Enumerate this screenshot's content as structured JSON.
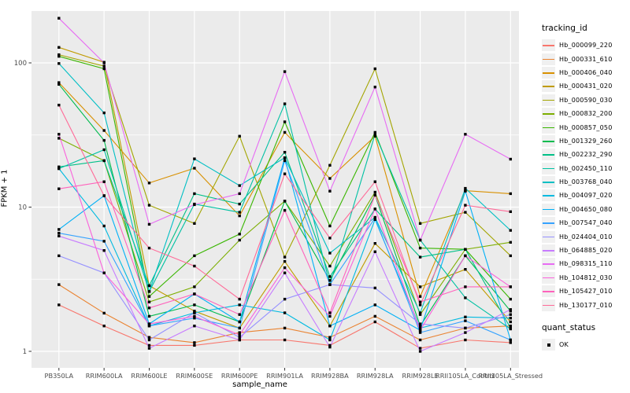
{
  "chart": {
    "xlabel": "sample_name",
    "ylabel": "FPKM + 1",
    "legend_title": "tracking_id",
    "quant_legend_title": "quant_status",
    "quant_ok_label": "OK"
  },
  "colors": {
    "panel_bg": "#EBEBEB",
    "grid": "#FFFFFF",
    "tick_text": "#4D4D4D",
    "point": "#000000"
  },
  "chart_data": {
    "type": "line",
    "title": "",
    "xlabel": "sample_name",
    "ylabel": "FPKM + 1",
    "y_scale": "log10",
    "y_ticks": [
      1,
      10,
      100
    ],
    "ylim": [
      0.77,
      230
    ],
    "grid": true,
    "legend_position": "right",
    "legend_title": "tracking_id",
    "point_marker": "black-square",
    "quant_status_values": [
      "OK"
    ],
    "categories": [
      "PB350LA",
      "RRIM600LA",
      "RRIM600LE",
      "RRIM600SE",
      "RRIM600PE",
      "RRIM901LA",
      "RRIM928BA",
      "RRIM928LA",
      "RRIM928LE",
      "RRII105LA_Control",
      "RRII105LA_Stressed"
    ],
    "series": [
      {
        "name": "Hb_000099_220",
        "color": "#F8766D",
        "values": [
          2.1,
          1.5,
          1.1,
          1.1,
          1.2,
          1.2,
          1.1,
          1.6,
          1.05,
          1.2,
          1.15
        ]
      },
      {
        "name": "Hb_000331_610",
        "color": "#EA8331",
        "values": [
          2.9,
          1.84,
          1.25,
          1.15,
          1.35,
          1.45,
          1.25,
          1.75,
          1.2,
          1.45,
          1.5
        ]
      },
      {
        "name": "Hb_000406_040",
        "color": "#D89000",
        "values": [
          73,
          34,
          14.7,
          18.6,
          8.7,
          33,
          15.8,
          31,
          2.4,
          13,
          12.4
        ]
      },
      {
        "name": "Hb_000431_020",
        "color": "#C09B00",
        "values": [
          128,
          101,
          2.85,
          1.9,
          1.45,
          4.2,
          1.5,
          5.6,
          2.8,
          3.7,
          1.6
        ]
      },
      {
        "name": "Hb_000590_030",
        "color": "#A3A500",
        "values": [
          114,
          95,
          10.3,
          7.7,
          31,
          4.5,
          19.5,
          91,
          7.7,
          9.2,
          4.6
        ]
      },
      {
        "name": "Hb_000832_200",
        "color": "#7CAE00",
        "values": [
          30,
          21,
          2.2,
          2.8,
          5.9,
          11,
          3.9,
          12.7,
          1.8,
          5.1,
          5.7
        ]
      },
      {
        "name": "Hb_000857_050",
        "color": "#39B600",
        "values": [
          111,
          91,
          2.4,
          4.6,
          6.5,
          39,
          7.4,
          33,
          5.2,
          5.1,
          2.3
        ]
      },
      {
        "name": "Hb_001329_260",
        "color": "#00BB4E",
        "values": [
          71,
          29,
          1.75,
          2.1,
          1.6,
          11,
          3.1,
          12.1,
          1.5,
          4.6,
          1.9
        ]
      },
      {
        "name": "Hb_002232_290",
        "color": "#00C087",
        "values": [
          19,
          21,
          2.85,
          12.4,
          10.5,
          24,
          3.3,
          9.7,
          4.5,
          5.1,
          1.45
        ]
      },
      {
        "name": "Hb_002450_110",
        "color": "#00C1A3",
        "values": [
          18.5,
          25,
          2.6,
          10.5,
          9.2,
          52,
          2.9,
          32,
          5.9,
          2.35,
          1.43
        ]
      },
      {
        "name": "Hb_003768_040",
        "color": "#00BFC4",
        "values": [
          99,
          45,
          2.6,
          21.6,
          14.1,
          22,
          4.8,
          8.5,
          1.85,
          13.5,
          6.9
        ]
      },
      {
        "name": "Hb_004097_020",
        "color": "#00BAE0",
        "values": [
          18.5,
          7.4,
          1.5,
          1.85,
          2.1,
          1.85,
          1.2,
          8.2,
          1.45,
          1.73,
          1.7
        ]
      },
      {
        "name": "Hb_004650_080",
        "color": "#00B0F6",
        "values": [
          7.0,
          12,
          1.55,
          2.5,
          1.6,
          22,
          1.5,
          2.1,
          1.4,
          12.9,
          1.2
        ]
      },
      {
        "name": "Hb_007547_040",
        "color": "#35A2FF",
        "values": [
          6.6,
          5.8,
          1.5,
          1.7,
          1.45,
          21,
          2.9,
          8.4,
          1.35,
          1.63,
          1.2
        ]
      },
      {
        "name": "Hb_024404_010",
        "color": "#9590FF",
        "values": [
          4.6,
          3.5,
          1.2,
          1.85,
          1.25,
          2.3,
          2.9,
          2.75,
          1.55,
          1.45,
          1.8
        ]
      },
      {
        "name": "Hb_064885_020",
        "color": "#C77CFF",
        "values": [
          6.3,
          5.0,
          1.05,
          1.5,
          1.2,
          3.5,
          1.07,
          4.9,
          1.0,
          1.35,
          1.95
        ]
      },
      {
        "name": "Hb_098315_110",
        "color": "#E76BF3",
        "values": [
          204,
          100,
          7.6,
          10.4,
          12.4,
          87,
          12.9,
          68,
          5.9,
          32,
          21.5
        ]
      },
      {
        "name": "Hb_104812_030",
        "color": "#FA62DB",
        "values": [
          32,
          3.5,
          1.55,
          1.75,
          1.3,
          3.8,
          1.75,
          9.7,
          1.4,
          4.6,
          2.8
        ]
      },
      {
        "name": "Hb_105427_010",
        "color": "#FF62BC",
        "values": [
          13.4,
          15,
          2.0,
          2.5,
          1.8,
          9.5,
          1.85,
          12.1,
          2.2,
          2.8,
          2.8
        ]
      },
      {
        "name": "Hb_130177_010",
        "color": "#FF6A98",
        "values": [
          51,
          12,
          5.2,
          3.9,
          2.3,
          17,
          6.1,
          15,
          2.1,
          10.3,
          9.3
        ]
      }
    ]
  }
}
